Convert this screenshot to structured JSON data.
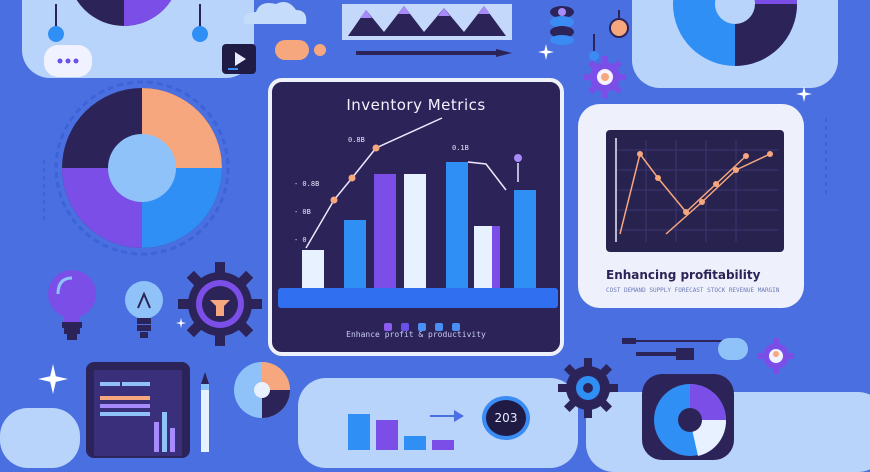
{
  "main_card": {
    "title": "Inventory Metrics",
    "caption": "Enhance profit & productivity",
    "y_labels": [
      "- 0.8B",
      "- 0B",
      "- 0"
    ],
    "top_labels": [
      "0.8B",
      "0.1B"
    ],
    "pager_colors": [
      "#8a5cf0",
      "#6a4fe8",
      "#4b8ff4",
      "#4b8ff4",
      "#4b8ff4"
    ]
  },
  "side_card": {
    "title": "Enhancing profitability",
    "subtitle": "COST  DEMAND  SUPPLY  FORECAST  STOCK  REVENUE  MARGIN"
  },
  "counter": {
    "value": "203"
  },
  "colors": {
    "background": "#4a6fe0",
    "navy": "#2c2458",
    "purple": "#7b4ee8",
    "blue": "#2f8ff5",
    "peach": "#f7a77d",
    "light": "#b9d4fb"
  },
  "icons": [
    "pie-chart-icon",
    "bar-chart-icon",
    "line-chart-icon",
    "gear-icon",
    "lightbulb-icon",
    "pencil-icon",
    "tablet-icon",
    "sparkle-icon",
    "play-icon",
    "chat-bubble-icon",
    "coin-stack-icon",
    "cloud-icon",
    "slider-icon"
  ]
}
